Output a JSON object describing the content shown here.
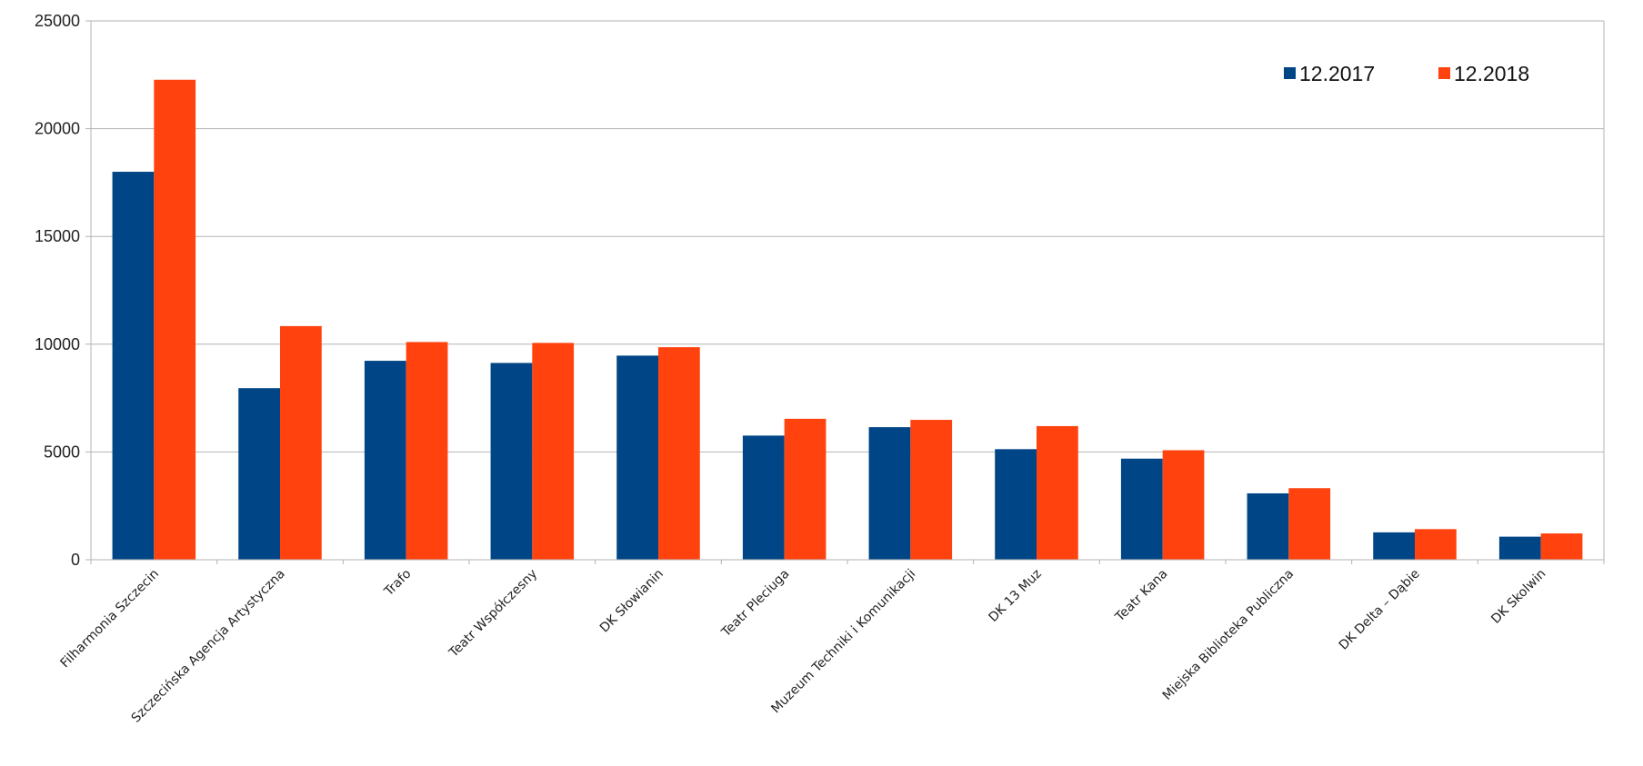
{
  "chart_data": {
    "type": "bar",
    "title": "",
    "xlabel": "",
    "ylabel": "",
    "ylim": [
      0,
      25000
    ],
    "yticks": [
      "0",
      "5000",
      "10000",
      "15000",
      "20000",
      "25000"
    ],
    "grid": true,
    "legend_position": "top-right",
    "categories": [
      "Filharmonia Szczecin",
      "Szczecińska Agencja Artystyczna",
      "Trafo",
      "Teatr Współczesny",
      "DK Słowianin",
      "Teatr Pleciuga",
      "Muzeum Techniki i Komunikacji",
      "DK 13 Muz",
      "Teatr Kana",
      "Miejska Biblioteka Publiczna",
      "DK Delta – Dąbie",
      "DK Skolwin"
    ],
    "series": [
      {
        "name": "12.2017",
        "color": "#004586",
        "values": [
          18000,
          7960,
          9230,
          9130,
          9470,
          5760,
          6150,
          5130,
          4690,
          3080,
          1270,
          1070
        ]
      },
      {
        "name": "12.2018",
        "color": "#ff420e",
        "values": [
          22270,
          10840,
          10100,
          10060,
          9860,
          6540,
          6490,
          6200,
          5080,
          3320,
          1420,
          1220
        ]
      }
    ]
  }
}
